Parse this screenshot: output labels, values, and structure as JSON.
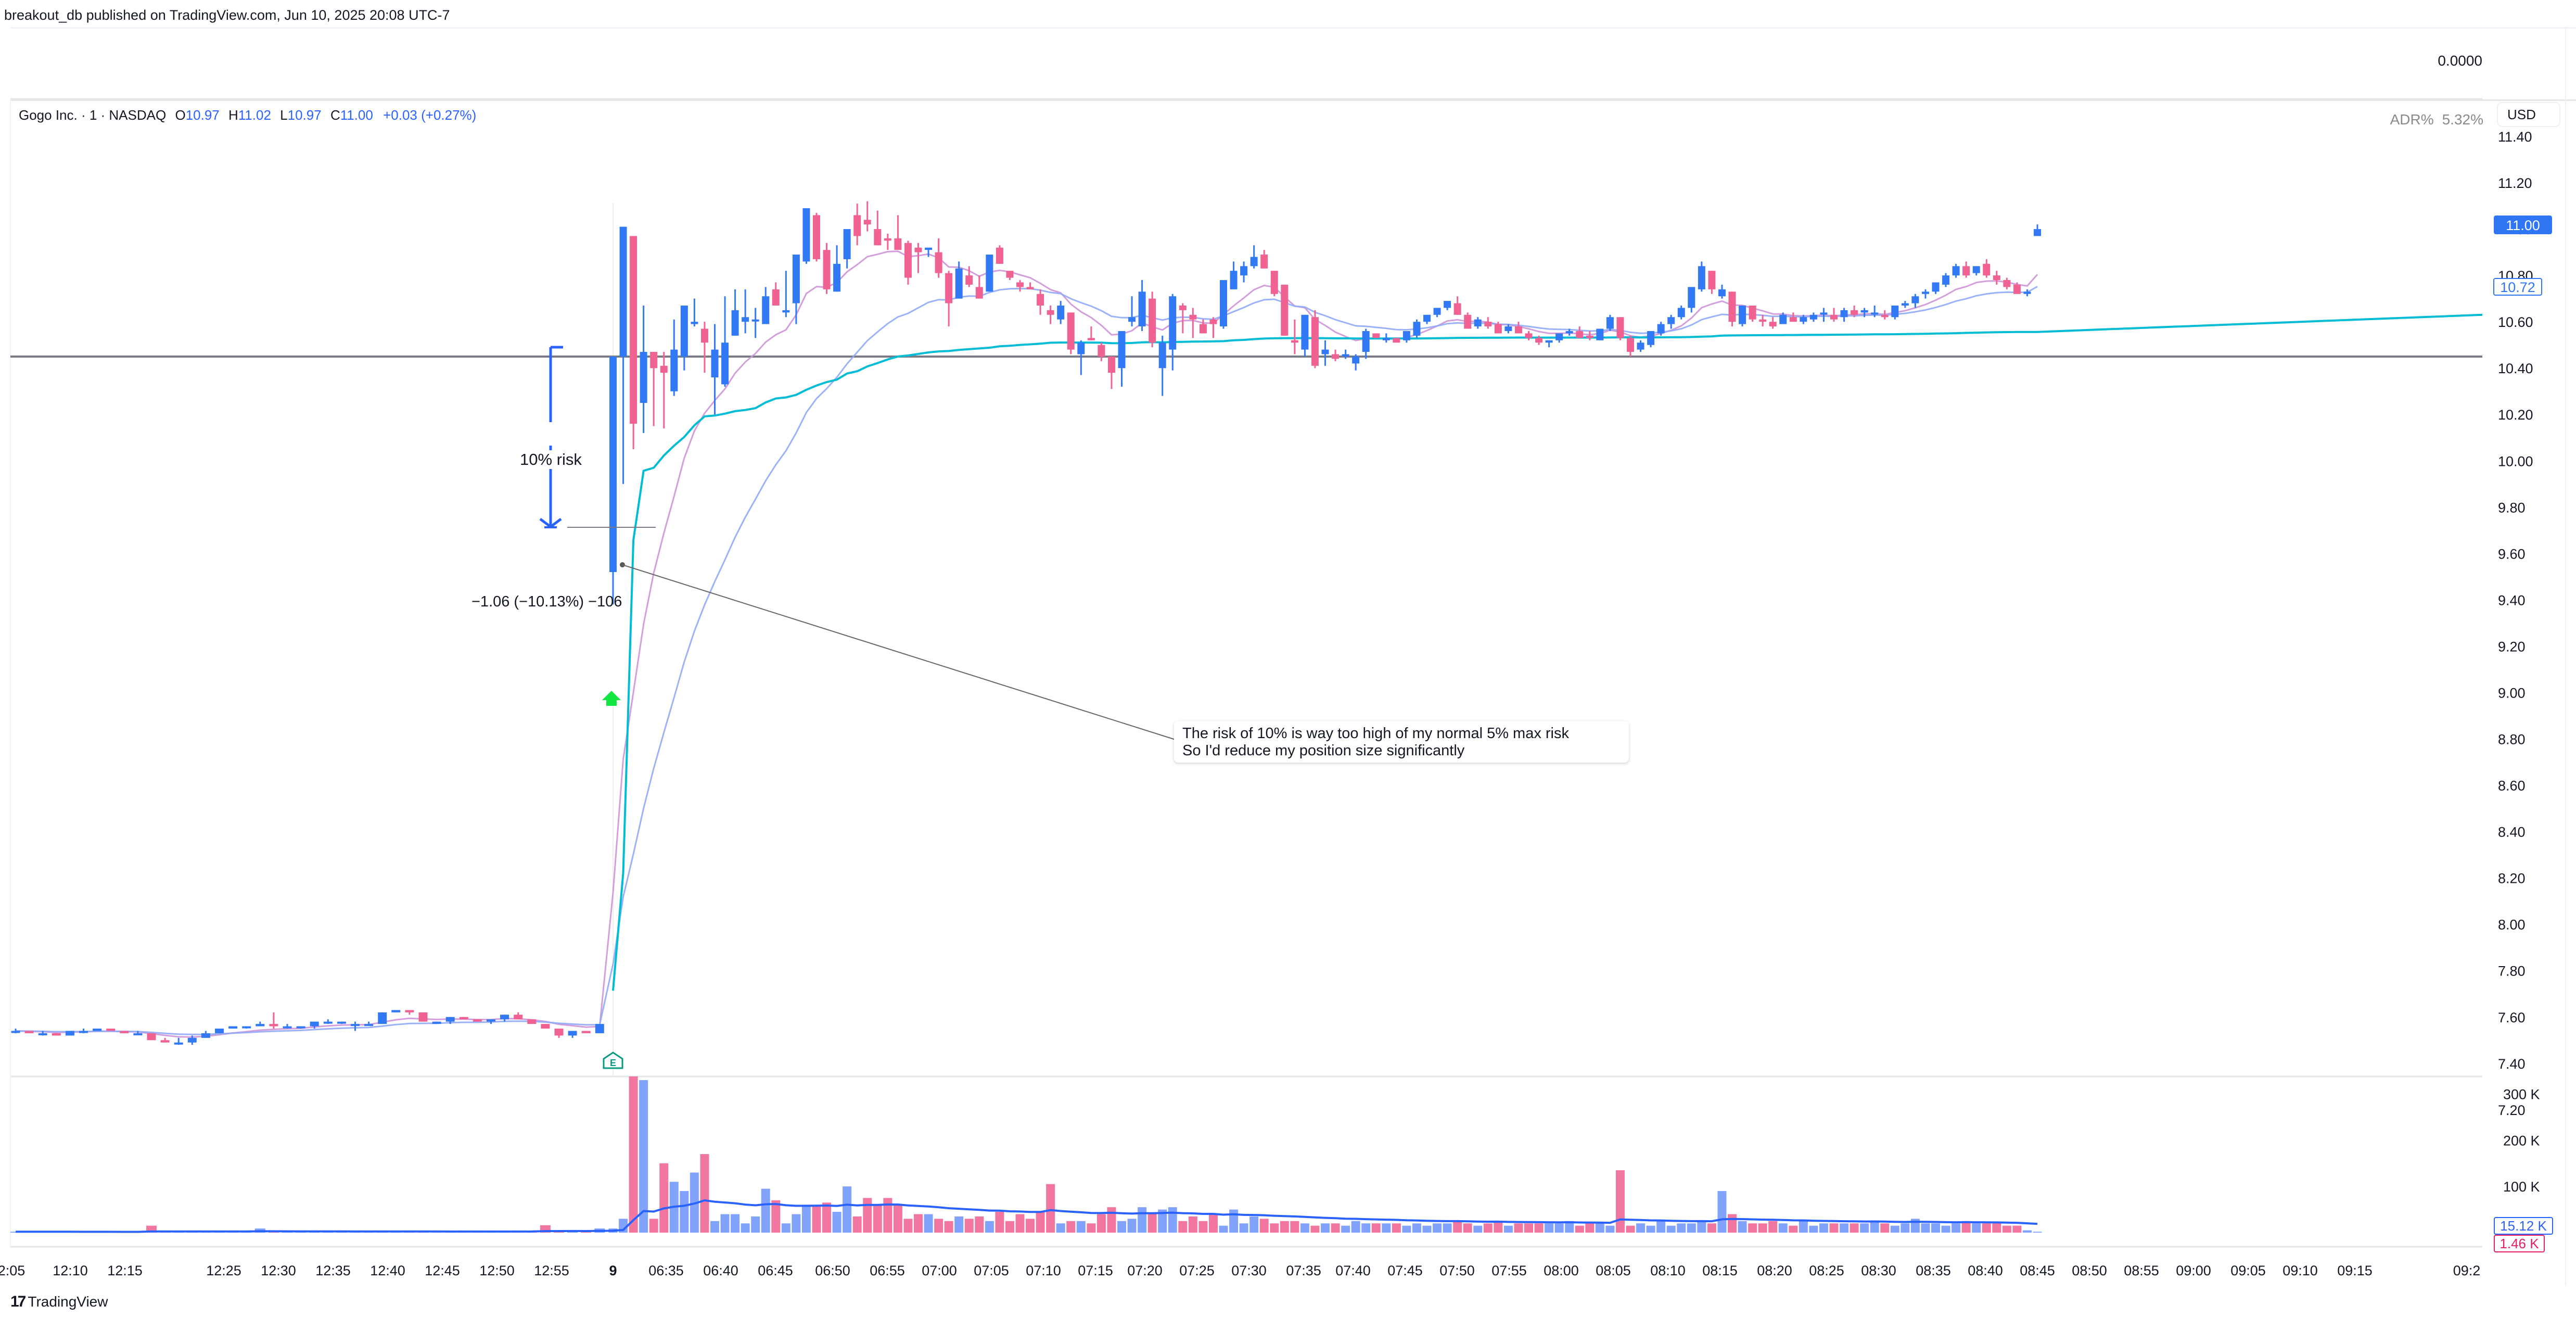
{
  "header": {
    "published": "breakout_db published on TradingView.com, Jun 10, 2025 20:08 UTC-7"
  },
  "top_pane": {
    "value": "0.0000"
  },
  "legend": {
    "symbol": "Gogo Inc. · 1 · NASDAQ",
    "o_label": "O",
    "o": "10.97",
    "h_label": "H",
    "h": "11.02",
    "l_label": "L",
    "l": "10.97",
    "c_label": "C",
    "c": "11.00",
    "change": "+0.03 (+0.27%)"
  },
  "indicator": {
    "name": "ADR%",
    "value": "5.32%"
  },
  "currency": "USD",
  "price_axis": {
    "ticks": [
      "11.40",
      "11.20",
      "11.00",
      "10.80",
      "10.60",
      "10.40",
      "10.20",
      "10.00",
      "9.80",
      "9.60",
      "9.40",
      "9.20",
      "9.00",
      "8.80",
      "8.60",
      "8.40",
      "8.20",
      "8.00",
      "7.80",
      "7.60",
      "7.40",
      "7.20"
    ],
    "last_price_label": "11.00",
    "ma_label": "10.72"
  },
  "volume_axis": {
    "ticks": [
      "300 K",
      "200 K",
      "100 K"
    ],
    "vol_ma_label": "15.12 K",
    "vol_label": "1.46 K"
  },
  "time_axis": {
    "labels": [
      "2:05",
      "12:10",
      "12:15",
      "12:25",
      "12:30",
      "12:35",
      "12:40",
      "12:45",
      "12:50",
      "12:55",
      "9",
      "06:35",
      "06:40",
      "06:45",
      "06:50",
      "06:55",
      "07:00",
      "07:05",
      "07:10",
      "07:15",
      "07:20",
      "07:25",
      "07:30",
      "07:35",
      "07:40",
      "07:45",
      "07:50",
      "07:55",
      "08:00",
      "08:05",
      "08:10",
      "08:15",
      "08:20",
      "08:25",
      "08:30",
      "08:35",
      "08:40",
      "08:45",
      "08:50",
      "08:55",
      "09:00",
      "09:05",
      "09:10",
      "09:15",
      "09:2"
    ]
  },
  "annotations": {
    "risk_label": "10% risk",
    "measure_label": "−1.06 (−10.13%) −106",
    "note_line1": "The risk of 10% is way too high of my normal 5% max risk",
    "note_line2": "So I'd reduce my position size significantly",
    "earnings_marker": "E",
    "horizontal_level": 10.45
  },
  "colors": {
    "up": "#3179f5",
    "down": "#f06292",
    "vol_up": "#82a3fb",
    "vol_down": "#f277a0",
    "ma_fast": "#ce93d8",
    "ma_slow": "#90a9f8",
    "vwap": "#00bcd4",
    "vol_ma": "#2962ff",
    "level": "#787b86",
    "arrow": "#00e640",
    "earnings": "#089981"
  },
  "footer": {
    "brand": "TradingView"
  },
  "chart_data": {
    "type": "candlestick",
    "title": "Gogo Inc. · 1 · NASDAQ",
    "xlabel": "",
    "ylabel": "USD",
    "ylim": [
      7.2,
      11.4
    ],
    "ohlc_last": {
      "open": 10.97,
      "high": 11.02,
      "low": 10.97,
      "close": 11.0,
      "change": 0.03,
      "change_pct": 0.27
    },
    "candles": [
      [
        7.54,
        7.55,
        7.53,
        7.54
      ],
      [
        7.54,
        7.54,
        7.53,
        7.53
      ],
      [
        7.53,
        7.54,
        7.52,
        7.53
      ],
      [
        7.53,
        7.53,
        7.52,
        7.52
      ],
      [
        7.52,
        7.54,
        7.52,
        7.54
      ],
      [
        7.54,
        7.55,
        7.53,
        7.54
      ],
      [
        7.54,
        7.55,
        7.54,
        7.55
      ],
      [
        7.55,
        7.55,
        7.54,
        7.54
      ],
      [
        7.54,
        7.54,
        7.53,
        7.53
      ],
      [
        7.53,
        7.54,
        7.53,
        7.53
      ],
      [
        7.53,
        7.53,
        7.5,
        7.5
      ],
      [
        7.5,
        7.51,
        7.49,
        7.49
      ],
      [
        7.49,
        7.51,
        7.48,
        7.49
      ],
      [
        7.49,
        7.52,
        7.48,
        7.51
      ],
      [
        7.51,
        7.54,
        7.51,
        7.53
      ],
      [
        7.53,
        7.55,
        7.53,
        7.55
      ],
      [
        7.55,
        7.56,
        7.55,
        7.56
      ],
      [
        7.56,
        7.56,
        7.55,
        7.56
      ],
      [
        7.56,
        7.58,
        7.56,
        7.57
      ],
      [
        7.57,
        7.62,
        7.55,
        7.56
      ],
      [
        7.56,
        7.57,
        7.55,
        7.56
      ],
      [
        7.56,
        7.56,
        7.55,
        7.56
      ],
      [
        7.56,
        7.58,
        7.55,
        7.58
      ],
      [
        7.58,
        7.59,
        7.57,
        7.58
      ],
      [
        7.58,
        7.58,
        7.57,
        7.58
      ],
      [
        7.57,
        7.58,
        7.54,
        7.57
      ],
      [
        7.57,
        7.58,
        7.57,
        7.57
      ],
      [
        7.57,
        7.62,
        7.57,
        7.62
      ],
      [
        7.62,
        7.63,
        7.62,
        7.63
      ],
      [
        7.63,
        7.63,
        7.61,
        7.62
      ],
      [
        7.62,
        7.62,
        7.58,
        7.58
      ],
      [
        7.57,
        7.58,
        7.57,
        7.58
      ],
      [
        7.58,
        7.6,
        7.57,
        7.6
      ],
      [
        7.6,
        7.6,
        7.59,
        7.59
      ],
      [
        7.59,
        7.59,
        7.58,
        7.58
      ],
      [
        7.58,
        7.59,
        7.57,
        7.59
      ],
      [
        7.59,
        7.61,
        7.58,
        7.61
      ],
      [
        7.61,
        7.62,
        7.59,
        7.59
      ],
      [
        7.59,
        7.59,
        7.57,
        7.57
      ],
      [
        7.57,
        7.57,
        7.55,
        7.55
      ],
      [
        7.55,
        7.55,
        7.51,
        7.52
      ],
      [
        7.52,
        7.54,
        7.51,
        7.54
      ],
      [
        7.54,
        7.54,
        7.53,
        7.53
      ],
      [
        7.53,
        7.57,
        7.53,
        7.57
      ],
      [
        9.52,
        10.45,
        9.38,
        10.45
      ],
      [
        10.45,
        11.01,
        9.9,
        11.01
      ],
      [
        10.97,
        10.97,
        10.05,
        10.16
      ],
      [
        10.25,
        10.67,
        10.12,
        10.47
      ],
      [
        10.47,
        10.47,
        10.15,
        10.4
      ],
      [
        10.41,
        10.47,
        10.14,
        10.38
      ],
      [
        10.3,
        10.61,
        10.28,
        10.48
      ],
      [
        10.45,
        10.67,
        10.39,
        10.67
      ],
      [
        10.59,
        10.7,
        10.58,
        10.6
      ],
      [
        10.57,
        10.6,
        10.38,
        10.51
      ],
      [
        10.36,
        10.59,
        10.2,
        10.48
      ],
      [
        10.33,
        10.71,
        10.32,
        10.51
      ],
      [
        10.54,
        10.74,
        10.54,
        10.65
      ],
      [
        10.6,
        10.74,
        10.55,
        10.62
      ],
      [
        10.61,
        10.66,
        10.53,
        10.61
      ],
      [
        10.59,
        10.75,
        10.6,
        10.71
      ],
      [
        10.74,
        10.77,
        10.67,
        10.67
      ],
      [
        10.64,
        10.82,
        10.62,
        10.65
      ],
      [
        10.68,
        10.89,
        10.59,
        10.89
      ],
      [
        10.86,
        11.08,
        10.85,
        11.09
      ],
      [
        11.06,
        11.07,
        10.86,
        10.87
      ],
      [
        10.91,
        10.94,
        10.72,
        10.74
      ],
      [
        10.73,
        10.93,
        10.73,
        10.85
      ],
      [
        10.87,
        11.0,
        10.83,
        11.0
      ],
      [
        11.06,
        11.11,
        10.93,
        10.97
      ],
      [
        11.04,
        11.12,
        10.99,
        11.02
      ],
      [
        11.0,
        11.08,
        10.93,
        10.93
      ],
      [
        10.96,
        10.98,
        10.91,
        10.95
      ],
      [
        10.96,
        11.06,
        10.93,
        10.91
      ],
      [
        10.94,
        10.95,
        10.76,
        10.79
      ],
      [
        10.92,
        10.94,
        10.81,
        10.9
      ],
      [
        10.91,
        10.91,
        10.88,
        10.92
      ],
      [
        10.9,
        10.96,
        10.79,
        10.81
      ],
      [
        10.81,
        10.82,
        10.58,
        10.68
      ],
      [
        10.7,
        10.86,
        10.73,
        10.83
      ],
      [
        10.8,
        10.84,
        10.75,
        10.76
      ],
      [
        10.75,
        10.8,
        10.73,
        10.7
      ],
      [
        10.73,
        10.79,
        10.79,
        10.89
      ],
      [
        10.92,
        10.93,
        10.85,
        10.85
      ],
      [
        10.82,
        10.82,
        10.78,
        10.79
      ],
      [
        10.77,
        10.78,
        10.73,
        10.75
      ],
      [
        10.75,
        10.77,
        10.74,
        10.74
      ],
      [
        10.72,
        10.74,
        10.63,
        10.67
      ],
      [
        10.65,
        10.67,
        10.59,
        10.63
      ],
      [
        10.61,
        10.69,
        10.59,
        10.67
      ],
      [
        10.64,
        10.64,
        10.46,
        10.48
      ],
      [
        10.46,
        10.52,
        10.37,
        10.51
      ],
      [
        10.53,
        10.58,
        10.52,
        10.52
      ],
      [
        10.5,
        10.51,
        10.43,
        10.45
      ],
      [
        10.45,
        10.45,
        10.31,
        10.38
      ],
      [
        10.4,
        10.56,
        10.32,
        10.56
      ],
      [
        10.6,
        10.71,
        10.58,
        10.62
      ],
      [
        10.58,
        10.78,
        10.56,
        10.73
      ],
      [
        10.7,
        10.73,
        10.49,
        10.51
      ],
      [
        10.4,
        10.54,
        10.28,
        10.51
      ],
      [
        10.48,
        10.72,
        10.39,
        10.71
      ],
      [
        10.67,
        10.68,
        10.55,
        10.65
      ],
      [
        10.63,
        10.66,
        10.53,
        10.61
      ],
      [
        10.59,
        10.61,
        10.55,
        10.55
      ],
      [
        10.61,
        10.62,
        10.53,
        10.59
      ],
      [
        10.58,
        10.78,
        10.57,
        10.78
      ],
      [
        10.74,
        10.86,
        10.74,
        10.82
      ],
      [
        10.8,
        10.86,
        10.77,
        10.84
      ],
      [
        10.84,
        10.93,
        10.83,
        10.88
      ],
      [
        10.89,
        10.91,
        10.83,
        10.83
      ],
      [
        10.82,
        10.82,
        10.71,
        10.72
      ],
      [
        10.76,
        10.76,
        10.54,
        10.54
      ],
      [
        10.52,
        10.61,
        10.46,
        10.51
      ],
      [
        10.48,
        10.63,
        10.45,
        10.63
      ],
      [
        10.62,
        10.65,
        10.4,
        10.41
      ],
      [
        10.46,
        10.52,
        10.41,
        10.48
      ],
      [
        10.46,
        10.48,
        10.43,
        10.44
      ],
      [
        10.45,
        10.48,
        10.44,
        10.46
      ],
      [
        10.42,
        10.46,
        10.39,
        10.45
      ],
      [
        10.47,
        10.57,
        10.44,
        10.56
      ],
      [
        10.55,
        10.55,
        10.53,
        10.53
      ],
      [
        10.52,
        10.55,
        10.51,
        10.53
      ],
      [
        10.53,
        10.53,
        10.51,
        10.51
      ],
      [
        10.52,
        10.56,
        10.51,
        10.56
      ],
      [
        10.54,
        10.61,
        10.53,
        10.6
      ],
      [
        10.6,
        10.63,
        10.59,
        10.63
      ],
      [
        10.63,
        10.66,
        10.62,
        10.66
      ],
      [
        10.66,
        10.69,
        10.65,
        10.69
      ],
      [
        10.68,
        10.71,
        10.63,
        10.63
      ],
      [
        10.63,
        10.64,
        10.57,
        10.57
      ],
      [
        10.58,
        10.62,
        10.57,
        10.61
      ],
      [
        10.6,
        10.62,
        10.57,
        10.58
      ],
      [
        10.59,
        10.6,
        10.55,
        10.55
      ],
      [
        10.56,
        10.59,
        10.55,
        10.58
      ],
      [
        10.58,
        10.6,
        10.55,
        10.55
      ],
      [
        10.55,
        10.56,
        10.52,
        10.53
      ],
      [
        10.53,
        10.54,
        10.5,
        10.51
      ],
      [
        10.51,
        10.52,
        10.49,
        10.52
      ],
      [
        10.52,
        10.55,
        10.51,
        10.55
      ],
      [
        10.55,
        10.57,
        10.54,
        10.56
      ],
      [
        10.56,
        10.58,
        10.53,
        10.53
      ],
      [
        10.54,
        10.56,
        10.52,
        10.53
      ],
      [
        10.52,
        10.57,
        10.52,
        10.57
      ],
      [
        10.57,
        10.63,
        10.56,
        10.62
      ],
      [
        10.62,
        10.62,
        10.52,
        10.53
      ],
      [
        10.53,
        10.54,
        10.45,
        10.47
      ],
      [
        10.48,
        10.52,
        10.47,
        10.51
      ],
      [
        10.5,
        10.56,
        10.49,
        10.56
      ],
      [
        10.55,
        10.6,
        10.54,
        10.59
      ],
      [
        10.59,
        10.63,
        10.57,
        10.62
      ],
      [
        10.62,
        10.67,
        10.61,
        10.66
      ],
      [
        10.66,
        10.75,
        10.64,
        10.75
      ],
      [
        10.74,
        10.86,
        10.73,
        10.84
      ],
      [
        10.82,
        10.82,
        10.72,
        10.74
      ],
      [
        10.71,
        10.76,
        10.7,
        10.74
      ],
      [
        10.73,
        10.73,
        10.58,
        10.6
      ],
      [
        10.59,
        10.67,
        10.58,
        10.67
      ],
      [
        10.67,
        10.67,
        10.6,
        10.61
      ],
      [
        10.61,
        10.63,
        10.58,
        10.6
      ],
      [
        10.6,
        10.62,
        10.57,
        10.58
      ],
      [
        10.59,
        10.64,
        10.59,
        10.63
      ],
      [
        10.62,
        10.64,
        10.6,
        10.6
      ],
      [
        10.6,
        10.63,
        10.59,
        10.62
      ],
      [
        10.61,
        10.64,
        10.6,
        10.63
      ],
      [
        10.64,
        10.66,
        10.6,
        10.64
      ],
      [
        10.63,
        10.66,
        10.6,
        10.61
      ],
      [
        10.62,
        10.66,
        10.6,
        10.65
      ],
      [
        10.65,
        10.67,
        10.62,
        10.63
      ],
      [
        10.64,
        10.66,
        10.62,
        10.65
      ],
      [
        10.64,
        10.67,
        10.62,
        10.64
      ],
      [
        10.63,
        10.65,
        10.61,
        10.62
      ],
      [
        10.62,
        10.67,
        10.61,
        10.67
      ],
      [
        10.67,
        10.69,
        10.66,
        10.68
      ],
      [
        10.68,
        10.72,
        10.66,
        10.71
      ],
      [
        10.72,
        10.74,
        10.7,
        10.73
      ],
      [
        10.73,
        10.77,
        10.72,
        10.77
      ],
      [
        10.76,
        10.81,
        10.75,
        10.8
      ],
      [
        10.8,
        10.85,
        10.79,
        10.84
      ],
      [
        10.84,
        10.86,
        10.79,
        10.8
      ],
      [
        10.81,
        10.84,
        10.8,
        10.84
      ],
      [
        10.85,
        10.87,
        10.79,
        10.8
      ],
      [
        10.8,
        10.82,
        10.76,
        10.78
      ],
      [
        10.78,
        10.79,
        10.74,
        10.75
      ],
      [
        10.76,
        10.77,
        10.72,
        10.72
      ],
      [
        10.72,
        10.74,
        10.71,
        10.73
      ],
      [
        10.97,
        11.02,
        10.97,
        11.0
      ]
    ],
    "volumes_k": [
      2,
      1,
      1,
      3,
      1,
      1,
      1,
      2,
      1,
      1,
      15,
      2,
      2,
      2,
      2,
      3,
      2,
      3,
      9,
      3,
      1,
      2,
      2,
      3,
      2,
      2,
      2,
      2,
      3,
      2,
      2,
      2,
      1,
      2,
      2,
      3,
      2,
      2,
      4,
      16,
      5,
      4,
      2,
      9,
      9,
      30,
      338,
      330,
      30,
      150,
      110,
      90,
      130,
      170,
      25,
      40,
      40,
      20,
      35,
      95,
      70,
      20,
      40,
      60,
      60,
      65,
      45,
      100,
      35,
      75,
      60,
      75,
      60,
      30,
      40,
      40,
      30,
      25,
      35,
      30,
      35,
      25,
      45,
      25,
      40,
      30,
      45,
      105,
      20,
      25,
      25,
      20,
      40,
      55,
      25,
      30,
      55,
      40,
      50,
      55,
      25,
      35,
      25,
      40,
      15,
      50,
      20,
      35,
      30,
      20,
      25,
      25,
      20,
      15,
      20,
      20,
      15,
      25,
      20,
      20,
      20,
      20,
      15,
      20,
      15,
      20,
      20,
      25,
      20,
      15,
      20,
      25,
      15,
      20,
      20,
      20,
      20,
      20,
      25,
      15,
      20,
      20,
      15,
      135,
      15,
      20,
      15,
      25,
      15,
      20,
      20,
      25,
      20,
      90,
      40,
      25,
      20,
      20,
      25,
      20,
      15,
      25,
      15,
      20,
      20,
      20,
      20,
      20,
      25,
      20,
      15,
      20,
      30,
      20,
      20,
      15,
      20,
      25,
      20,
      20,
      20,
      15,
      15,
      5,
      2
    ],
    "overlays": [
      "Fast MA (pink)",
      "Slow MA (light blue)",
      "VWAP/long MA (cyan)",
      "Horizontal level 10.45"
    ],
    "volume_ma_last": 15.12,
    "volume_last": 1.46
  }
}
